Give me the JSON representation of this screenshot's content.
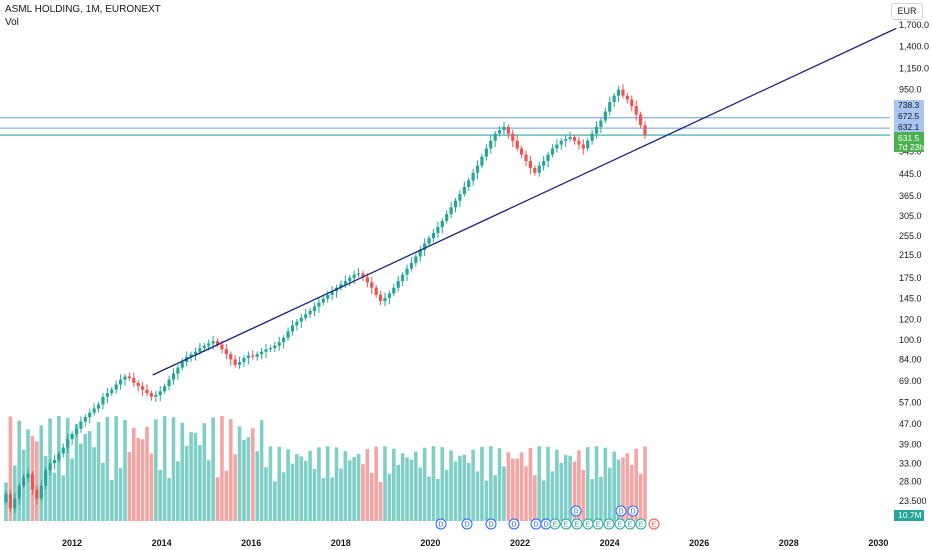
{
  "header": {
    "symbol_line": "ASML HOLDING, 1M, EURONEXT",
    "volume_label": "Vol",
    "currency_button": "EUR"
  },
  "colors": {
    "up": "#26a69a",
    "down": "#ef5350",
    "vol_up": "#7fcfc6",
    "vol_down": "#f4a5a3",
    "trendline": "#1a237e",
    "hline": "#6c9bd8",
    "price_badge": "#4caf50",
    "level_badge": "#a9c6f0"
  },
  "chart_data": {
    "type": "candlestick",
    "y_scale": "log",
    "y_ticks": [
      "1,700.0",
      "1,400.0",
      "1,150.0",
      "950.0",
      "545.0",
      "445.0",
      "365.0",
      "305.0",
      "255.0",
      "215.0",
      "175.0",
      "145.0",
      "120.0",
      "100.0",
      "84.00",
      "69.00",
      "57.00",
      "47.00",
      "39.00",
      "33.00",
      "28.00",
      "23.500"
    ],
    "x_ticks": [
      "2012",
      "2014",
      "2016",
      "2018",
      "2020",
      "2022",
      "2024",
      "2026",
      "2028",
      "2030"
    ],
    "closes": [
      25,
      22,
      24,
      27,
      29,
      30,
      26,
      24,
      27,
      31,
      33,
      34,
      36,
      38,
      41,
      43,
      45,
      48,
      50,
      52,
      54,
      56,
      60,
      62,
      64,
      67,
      70,
      72,
      71,
      68,
      66,
      64,
      62,
      60,
      61,
      63,
      66,
      70,
      74,
      78,
      82,
      86,
      88,
      90,
      93,
      95,
      97,
      99,
      96,
      92,
      88,
      84,
      80,
      82,
      85,
      87,
      86,
      88,
      90,
      92,
      93,
      95,
      98,
      102,
      108,
      114,
      118,
      122,
      126,
      130,
      135,
      140,
      145,
      150,
      155,
      160,
      165,
      170,
      175,
      180,
      182,
      176,
      168,
      160,
      150,
      142,
      146,
      152,
      160,
      170,
      180,
      190,
      200,
      212,
      225,
      238,
      250,
      262,
      276,
      292,
      310,
      330,
      350,
      372,
      396,
      420,
      450,
      480,
      520,
      560,
      600,
      640,
      660,
      680,
      640,
      600,
      560,
      530,
      500,
      470,
      450,
      480,
      500,
      530,
      560,
      580,
      600,
      610,
      620,
      600,
      580,
      560,
      600,
      640,
      680,
      720,
      780,
      850,
      900,
      950,
      900,
      870,
      820,
      760,
      690,
      631.5
    ],
    "current_price": "631.5",
    "countdown": "7d 23h",
    "levels": [
      "738.3",
      "672.5",
      "632.1"
    ],
    "volume_value": "10.7M",
    "trendline": {
      "from": {
        "year": 2013.8,
        "price": 73
      },
      "to": {
        "year": 2030.4,
        "price": 1650
      }
    },
    "events": [
      "D",
      "D",
      "D",
      "D",
      "D",
      "D",
      "E",
      "E",
      "E",
      "E",
      "E",
      "E",
      "E",
      "E",
      "E",
      "E",
      "D",
      "D",
      "D"
    ]
  }
}
